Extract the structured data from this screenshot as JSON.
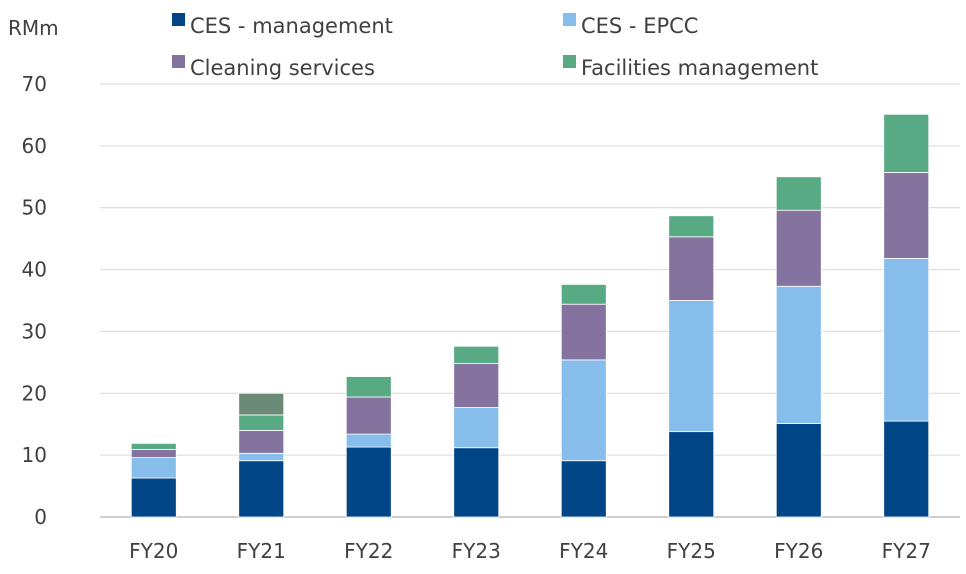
{
  "chart_data": {
    "type": "bar",
    "stacked": true,
    "unit_label": "RMm",
    "categories": [
      "FY20",
      "FY21",
      "FY22",
      "FY23",
      "FY24",
      "FY25",
      "FY26",
      "FY27"
    ],
    "series": [
      {
        "name": "CES - management",
        "color": "#004586",
        "values": [
          6.3,
          9.1,
          11.3,
          11.2,
          9.1,
          13.8,
          15.1,
          15.5
        ]
      },
      {
        "name": "CES - EPCC",
        "color": "#87bdeb",
        "values": [
          3.3,
          1.2,
          2.1,
          6.5,
          16.3,
          21.2,
          22.2,
          26.3
        ]
      },
      {
        "name": "Cleaning services",
        "color": "#85739f",
        "values": [
          1.3,
          3.7,
          6.0,
          7.1,
          9.0,
          10.3,
          12.3,
          13.9
        ]
      },
      {
        "name": "Facilities management",
        "color": "#57aa83",
        "values": [
          1.0,
          2.5,
          3.3,
          2.8,
          3.2,
          3.4,
          5.4,
          9.4
        ]
      }
    ],
    "extra_segments": [
      {
        "category": "FY21",
        "value": 3.5,
        "color": "#6b8a75"
      }
    ],
    "ylim": [
      0,
      70
    ],
    "yticks": [
      0,
      10,
      20,
      30,
      40,
      50,
      60,
      70
    ],
    "grid": true,
    "legend_position": "top"
  }
}
